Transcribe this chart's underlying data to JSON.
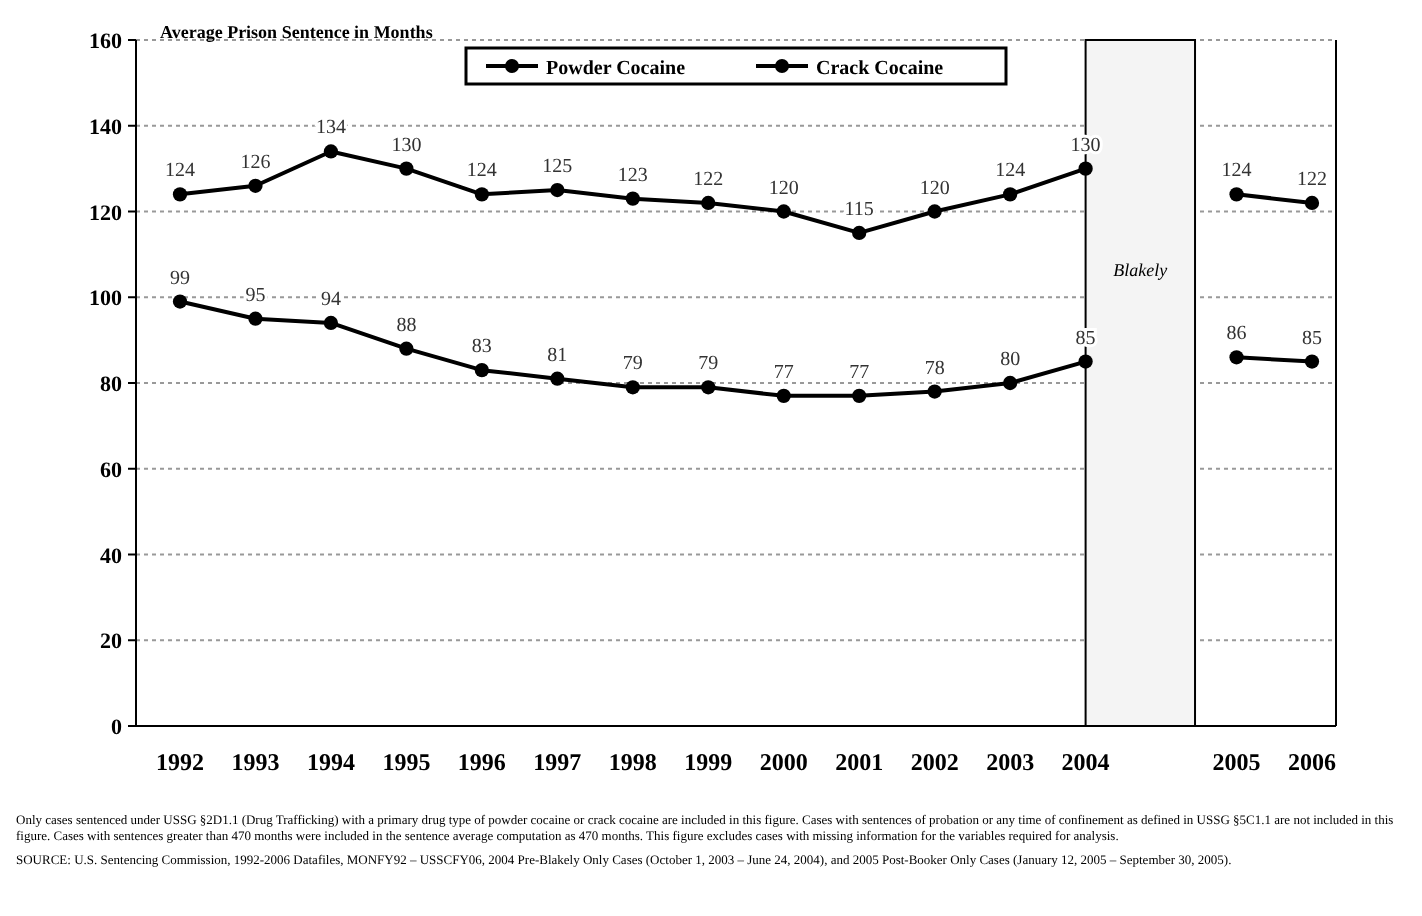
{
  "chart_data": {
    "type": "line",
    "title": "Average Prison Sentence in Months",
    "categories": [
      "1992",
      "1993",
      "1994",
      "1995",
      "1996",
      "1997",
      "1998",
      "1999",
      "2000",
      "2001",
      "2002",
      "2003",
      "2004",
      null,
      "2005",
      "2006"
    ],
    "series": [
      {
        "name": "Powder Cocaine",
        "color": "#000000",
        "values": [
          99,
          95,
          94,
          88,
          83,
          81,
          79,
          79,
          77,
          77,
          78,
          80,
          85,
          null,
          86,
          85
        ]
      },
      {
        "name": "Crack Cocaine",
        "color": "#000000",
        "values": [
          124,
          126,
          134,
          130,
          124,
          125,
          123,
          122,
          120,
          115,
          120,
          124,
          130,
          null,
          124,
          122
        ]
      }
    ],
    "ylim": [
      0,
      160
    ],
    "yticks": [
      0,
      20,
      40,
      60,
      80,
      100,
      120,
      140,
      160
    ],
    "grid": "y",
    "legend": "top",
    "marker": "circle",
    "line_style": "solid",
    "data_labels": true,
    "bands": [
      {
        "axis": "x",
        "from": "2004",
        "to": "2005",
        "label": "Blakely"
      }
    ],
    "annotations": [
      "Only cases sentenced under USSG §2D1.1 (Drug Trafficking) with a primary drug type of powder cocaine or crack cocaine are included in this figure. Cases with sentences of probation or any time of confinement as defined in USSG §5C1.1 are not included in this figure. Cases with sentences greater than 470 months were included in the sentence average computation as 470 months. This figure excludes cases with missing information for the variables required for analysis.",
      "SOURCE: U.S. Sentencing Commission, 1992-2006 Datafiles, MONFY92 – USSCFY06, 2004 Pre-Blakely Only Cases (October 1, 2003 – June 24, 2004), and 2005 Post-Booker Only Cases (January 12, 2005 – September 30, 2005)."
    ]
  }
}
